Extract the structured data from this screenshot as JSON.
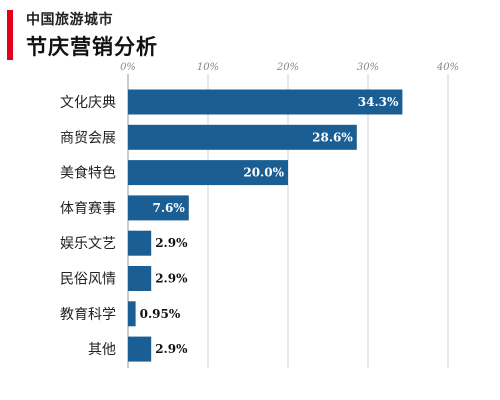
{
  "header": {
    "subtitle": "中国旅游城市",
    "title": "节庆营销分析"
  },
  "colors": {
    "accent": "#e2001a",
    "bar": "#1a5e94",
    "grid": "#d0d0d0",
    "label_inside": "#ffffff",
    "label_outside": "#111111"
  },
  "chart_data": {
    "type": "bar",
    "orientation": "horizontal",
    "categories": [
      "文化庆典",
      "商贸会展",
      "美食特色",
      "体育赛事",
      "娱乐文艺",
      "民俗风情",
      "教育科学",
      "其他"
    ],
    "values": [
      34.3,
      28.6,
      20.0,
      7.6,
      2.9,
      2.9,
      0.95,
      2.9
    ],
    "value_labels": [
      "34.3%",
      "28.6%",
      "20.0%",
      "7.6%",
      "2.9%",
      "2.9%",
      "0.95%",
      "2.9%"
    ],
    "xlim": [
      0,
      40
    ],
    "x_ticks": [
      0,
      10,
      20,
      30,
      40
    ],
    "x_tick_labels": [
      "0%",
      "10%",
      "20%",
      "30%",
      "40%"
    ],
    "grid": true,
    "legend": "none"
  }
}
